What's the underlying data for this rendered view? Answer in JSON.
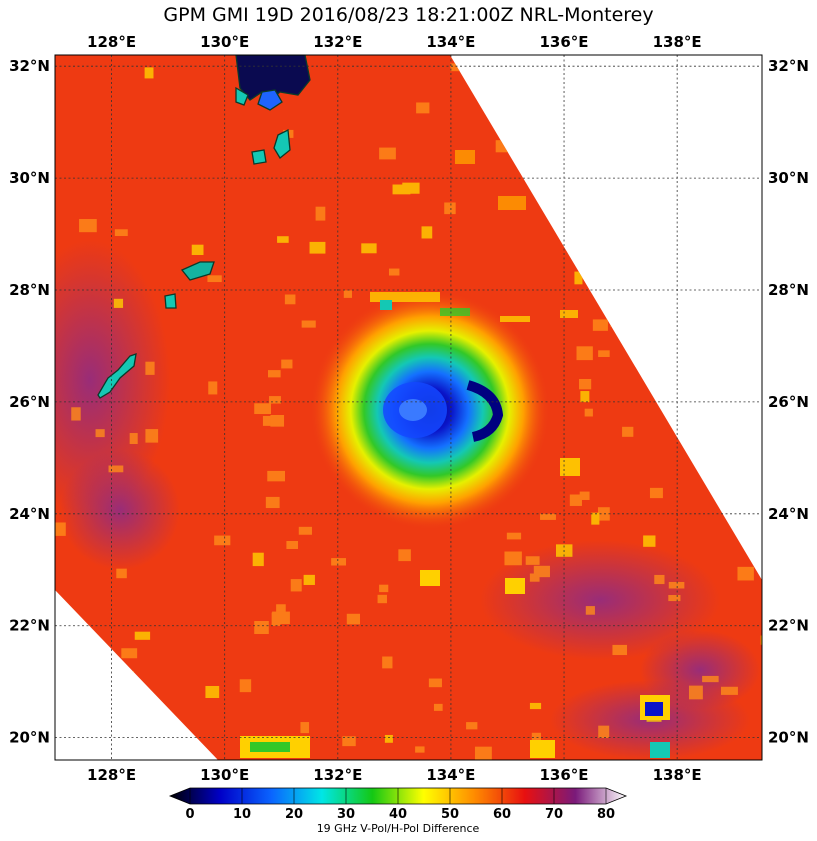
{
  "title": "GPM GMI 19D 2016/08/23 18:21:00Z NRL-Monterey",
  "map": {
    "lon_range": [
      127.0,
      139.5
    ],
    "lat_range": [
      19.6,
      32.2
    ],
    "lon_ticks": [
      "128°E",
      "130°E",
      "132°E",
      "134°E",
      "136°E",
      "138°E"
    ],
    "lat_ticks": [
      "32°N",
      "30°N",
      "28°N",
      "26°N",
      "24°N",
      "22°N",
      "20°N"
    ],
    "lon_tick_values": [
      128,
      130,
      132,
      134,
      136,
      138
    ],
    "lat_tick_values": [
      32,
      30,
      28,
      26,
      24,
      22,
      20
    ],
    "storm_center": {
      "lon": 133.3,
      "lat": 25.8
    }
  },
  "colorbar": {
    "label": "19 GHz V-Pol/H-Pol Difference",
    "ticks": [
      "0",
      "10",
      "20",
      "30",
      "40",
      "50",
      "60",
      "70",
      "80"
    ],
    "range": [
      0,
      80
    ],
    "colors": [
      "#000000",
      "#0000c8",
      "#0a64ff",
      "#00e6e6",
      "#14c814",
      "#ffff00",
      "#ff8c00",
      "#e81010",
      "#7a1a7a",
      "#ffffff"
    ]
  },
  "palette": {
    "background": "#ee3a12",
    "eye": "#0a0a8c",
    "outer_ring": "#ffd000",
    "land_dark": "#0a0a50"
  }
}
